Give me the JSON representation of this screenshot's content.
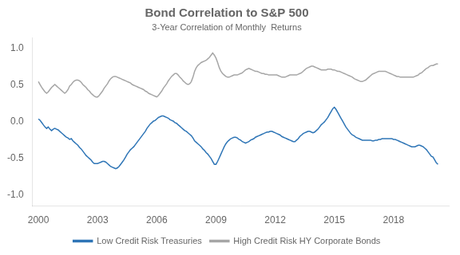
{
  "chart_data": {
    "type": "line",
    "title": "Bond Correlation to S&P 500",
    "subtitle": "3-Year Correlation of Monthly  Returns",
    "xlim": [
      1999.7,
      2020.8
    ],
    "xticks": [
      2000,
      2003,
      2006,
      2009,
      2012,
      2015,
      2018
    ],
    "ylim": [
      -1.15,
      1.15
    ],
    "yticks": [
      {
        "value": -1.0,
        "label": "-1.0"
      },
      -0.5,
      {
        "value": 0.0,
        "label": "0.0"
      },
      0.5,
      {
        "value": 1.0,
        "label": "1.0"
      }
    ],
    "grid": false,
    "legend": "bottom",
    "x": [
      2000.0,
      2000.083,
      2000.167,
      2000.25,
      2000.333,
      2000.417,
      2000.5,
      2000.583,
      2000.667,
      2000.75,
      2000.833,
      2000.917,
      2001.0,
      2001.083,
      2001.167,
      2001.25,
      2001.333,
      2001.417,
      2001.5,
      2001.583,
      2001.667,
      2001.75,
      2001.833,
      2001.917,
      2002.0,
      2002.083,
      2002.167,
      2002.25,
      2002.333,
      2002.417,
      2002.5,
      2002.583,
      2002.667,
      2002.75,
      2002.833,
      2002.917,
      2003.0,
      2003.083,
      2003.167,
      2003.25,
      2003.333,
      2003.417,
      2003.5,
      2003.583,
      2003.667,
      2003.75,
      2003.833,
      2003.917,
      2004.0,
      2004.083,
      2004.167,
      2004.25,
      2004.333,
      2004.417,
      2004.5,
      2004.583,
      2004.667,
      2004.75,
      2004.833,
      2004.917,
      2005.0,
      2005.083,
      2005.167,
      2005.25,
      2005.333,
      2005.417,
      2005.5,
      2005.583,
      2005.667,
      2005.75,
      2005.833,
      2005.917,
      2006.0,
      2006.083,
      2006.167,
      2006.25,
      2006.333,
      2006.417,
      2006.5,
      2006.583,
      2006.667,
      2006.75,
      2006.833,
      2006.917,
      2007.0,
      2007.083,
      2007.167,
      2007.25,
      2007.333,
      2007.417,
      2007.5,
      2007.583,
      2007.667,
      2007.75,
      2007.833,
      2007.917,
      2008.0,
      2008.083,
      2008.167,
      2008.25,
      2008.333,
      2008.417,
      2008.5,
      2008.583,
      2008.667,
      2008.75,
      2008.833,
      2008.917,
      2009.0,
      2009.083,
      2009.167,
      2009.25,
      2009.333,
      2009.417,
      2009.5,
      2009.583,
      2009.667,
      2009.75,
      2009.833,
      2009.917,
      2010.0,
      2010.083,
      2010.167,
      2010.25,
      2010.333,
      2010.417,
      2010.5,
      2010.583,
      2010.667,
      2010.75,
      2010.833,
      2010.917,
      2011.0,
      2011.083,
      2011.167,
      2011.25,
      2011.333,
      2011.417,
      2011.5,
      2011.583,
      2011.667,
      2011.75,
      2011.833,
      2011.917,
      2012.0,
      2012.083,
      2012.167,
      2012.25,
      2012.333,
      2012.417,
      2012.5,
      2012.583,
      2012.667,
      2012.75,
      2012.833,
      2012.917,
      2013.0,
      2013.083,
      2013.167,
      2013.25,
      2013.333,
      2013.417,
      2013.5,
      2013.583,
      2013.667,
      2013.75,
      2013.833,
      2013.917,
      2014.0,
      2014.083,
      2014.167,
      2014.25,
      2014.333,
      2014.417,
      2014.5,
      2014.583,
      2014.667,
      2014.75,
      2014.833,
      2014.917,
      2015.0,
      2015.083,
      2015.167,
      2015.25,
      2015.333,
      2015.417,
      2015.5,
      2015.583,
      2015.667,
      2015.75,
      2015.833,
      2015.917,
      2016.0,
      2016.083,
      2016.167,
      2016.25,
      2016.333,
      2016.417,
      2016.5,
      2016.583,
      2016.667,
      2016.75,
      2016.833,
      2016.917,
      2017.0,
      2017.083,
      2017.167,
      2017.25,
      2017.333,
      2017.417,
      2017.5,
      2017.583,
      2017.667,
      2017.75,
      2017.833,
      2017.917,
      2018.0,
      2018.083,
      2018.167,
      2018.25,
      2018.333,
      2018.417,
      2018.5,
      2018.583,
      2018.667,
      2018.75,
      2018.833,
      2018.917,
      2019.0,
      2019.083,
      2019.167,
      2019.25,
      2019.333,
      2019.417,
      2019.5,
      2019.583,
      2019.667,
      2019.75,
      2019.833,
      2019.917,
      2020.0,
      2020.083,
      2020.167,
      2020.25
    ],
    "series": [
      {
        "name": "Low Credit Risk Treasuries",
        "color": "#2e75b6",
        "values": [
          0.04,
          0.02,
          -0.01,
          -0.04,
          -0.07,
          -0.09,
          -0.07,
          -0.1,
          -0.12,
          -0.1,
          -0.09,
          -0.1,
          -0.11,
          -0.13,
          -0.15,
          -0.17,
          -0.19,
          -0.21,
          -0.22,
          -0.24,
          -0.23,
          -0.26,
          -0.28,
          -0.3,
          -0.32,
          -0.35,
          -0.37,
          -0.4,
          -0.43,
          -0.46,
          -0.48,
          -0.5,
          -0.52,
          -0.55,
          -0.57,
          -0.57,
          -0.57,
          -0.56,
          -0.55,
          -0.54,
          -0.54,
          -0.55,
          -0.57,
          -0.59,
          -0.61,
          -0.62,
          -0.63,
          -0.64,
          -0.63,
          -0.61,
          -0.58,
          -0.55,
          -0.52,
          -0.48,
          -0.44,
          -0.41,
          -0.38,
          -0.36,
          -0.34,
          -0.31,
          -0.28,
          -0.25,
          -0.22,
          -0.19,
          -0.16,
          -0.13,
          -0.09,
          -0.06,
          -0.03,
          -0.01,
          0.01,
          0.02,
          0.04,
          0.06,
          0.07,
          0.08,
          0.08,
          0.07,
          0.06,
          0.05,
          0.03,
          0.02,
          0.01,
          -0.01,
          -0.02,
          -0.04,
          -0.06,
          -0.08,
          -0.1,
          -0.12,
          -0.13,
          -0.15,
          -0.17,
          -0.19,
          -0.22,
          -0.26,
          -0.28,
          -0.3,
          -0.32,
          -0.34,
          -0.37,
          -0.39,
          -0.42,
          -0.44,
          -0.47,
          -0.5,
          -0.54,
          -0.58,
          -0.58,
          -0.54,
          -0.49,
          -0.44,
          -0.39,
          -0.34,
          -0.3,
          -0.27,
          -0.25,
          -0.23,
          -0.22,
          -0.21,
          -0.21,
          -0.22,
          -0.24,
          -0.25,
          -0.27,
          -0.28,
          -0.29,
          -0.28,
          -0.27,
          -0.25,
          -0.24,
          -0.23,
          -0.21,
          -0.2,
          -0.19,
          -0.18,
          -0.17,
          -0.16,
          -0.15,
          -0.14,
          -0.14,
          -0.13,
          -0.13,
          -0.14,
          -0.15,
          -0.16,
          -0.17,
          -0.18,
          -0.2,
          -0.21,
          -0.22,
          -0.23,
          -0.24,
          -0.25,
          -0.26,
          -0.27,
          -0.27,
          -0.25,
          -0.23,
          -0.2,
          -0.18,
          -0.16,
          -0.15,
          -0.14,
          -0.13,
          -0.13,
          -0.14,
          -0.15,
          -0.14,
          -0.12,
          -0.1,
          -0.07,
          -0.04,
          -0.02,
          0.0,
          0.03,
          0.06,
          0.1,
          0.14,
          0.18,
          0.2,
          0.17,
          0.13,
          0.09,
          0.05,
          0.01,
          -0.03,
          -0.07,
          -0.1,
          -0.13,
          -0.16,
          -0.18,
          -0.19,
          -0.21,
          -0.22,
          -0.23,
          -0.24,
          -0.25,
          -0.25,
          -0.25,
          -0.25,
          -0.25,
          -0.25,
          -0.26,
          -0.26,
          -0.25,
          -0.25,
          -0.24,
          -0.24,
          -0.23,
          -0.23,
          -0.23,
          -0.23,
          -0.23,
          -0.23,
          -0.23,
          -0.24,
          -0.24,
          -0.25,
          -0.26,
          -0.27,
          -0.28,
          -0.29,
          -0.3,
          -0.31,
          -0.32,
          -0.33,
          -0.34,
          -0.34,
          -0.34,
          -0.33,
          -0.32,
          -0.32,
          -0.33,
          -0.34,
          -0.36,
          -0.38,
          -0.41,
          -0.44,
          -0.47,
          -0.48,
          -0.52,
          -0.56,
          -0.58
        ]
      },
      {
        "name": "High Credit Risk HY Corporate Bonds",
        "color": "#a6a6a6",
        "values": [
          0.55,
          0.51,
          0.47,
          0.44,
          0.41,
          0.39,
          0.41,
          0.44,
          0.47,
          0.49,
          0.51,
          0.49,
          0.47,
          0.45,
          0.43,
          0.41,
          0.39,
          0.41,
          0.44,
          0.49,
          0.51,
          0.54,
          0.56,
          0.57,
          0.57,
          0.56,
          0.54,
          0.51,
          0.49,
          0.47,
          0.44,
          0.42,
          0.39,
          0.37,
          0.35,
          0.34,
          0.34,
          0.36,
          0.39,
          0.42,
          0.46,
          0.49,
          0.52,
          0.56,
          0.59,
          0.61,
          0.62,
          0.62,
          0.61,
          0.6,
          0.59,
          0.58,
          0.57,
          0.56,
          0.55,
          0.54,
          0.53,
          0.51,
          0.5,
          0.49,
          0.48,
          0.47,
          0.46,
          0.45,
          0.44,
          0.42,
          0.41,
          0.39,
          0.38,
          0.37,
          0.36,
          0.35,
          0.34,
          0.36,
          0.39,
          0.42,
          0.46,
          0.49,
          0.52,
          0.56,
          0.59,
          0.62,
          0.64,
          0.66,
          0.66,
          0.64,
          0.61,
          0.59,
          0.56,
          0.54,
          0.52,
          0.51,
          0.52,
          0.55,
          0.61,
          0.69,
          0.74,
          0.77,
          0.79,
          0.81,
          0.82,
          0.83,
          0.84,
          0.86,
          0.88,
          0.91,
          0.94,
          0.91,
          0.87,
          0.81,
          0.74,
          0.69,
          0.66,
          0.64,
          0.62,
          0.61,
          0.61,
          0.62,
          0.63,
          0.64,
          0.64,
          0.64,
          0.65,
          0.66,
          0.67,
          0.69,
          0.71,
          0.72,
          0.73,
          0.72,
          0.71,
          0.7,
          0.69,
          0.69,
          0.68,
          0.67,
          0.66,
          0.66,
          0.65,
          0.65,
          0.64,
          0.64,
          0.64,
          0.64,
          0.64,
          0.64,
          0.63,
          0.62,
          0.61,
          0.61,
          0.61,
          0.62,
          0.63,
          0.64,
          0.64,
          0.64,
          0.64,
          0.64,
          0.65,
          0.66,
          0.67,
          0.69,
          0.71,
          0.73,
          0.74,
          0.75,
          0.76,
          0.76,
          0.75,
          0.74,
          0.73,
          0.72,
          0.71,
          0.71,
          0.71,
          0.71,
          0.72,
          0.72,
          0.72,
          0.71,
          0.71,
          0.7,
          0.69,
          0.69,
          0.68,
          0.67,
          0.66,
          0.65,
          0.64,
          0.63,
          0.62,
          0.61,
          0.59,
          0.58,
          0.57,
          0.56,
          0.55,
          0.55,
          0.56,
          0.57,
          0.59,
          0.61,
          0.63,
          0.65,
          0.66,
          0.67,
          0.68,
          0.69,
          0.69,
          0.69,
          0.69,
          0.69,
          0.68,
          0.67,
          0.66,
          0.65,
          0.64,
          0.63,
          0.62,
          0.62,
          0.61,
          0.61,
          0.61,
          0.61,
          0.61,
          0.61,
          0.61,
          0.61,
          0.61,
          0.62,
          0.63,
          0.64,
          0.66,
          0.67,
          0.69,
          0.71,
          0.73,
          0.74,
          0.76,
          0.77,
          0.77,
          0.78,
          0.79,
          0.79
        ]
      }
    ]
  }
}
